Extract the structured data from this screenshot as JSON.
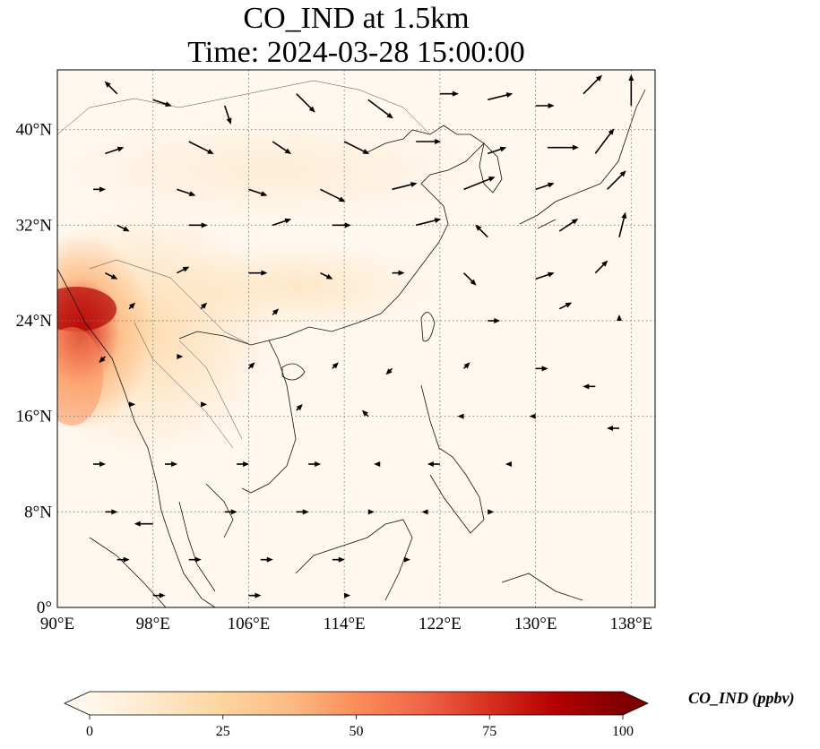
{
  "title": {
    "line1": "CO_IND at 1.5km",
    "line2": "Time: 2024-03-28 15:00:00"
  },
  "map": {
    "projection": "PlateCarree",
    "lon_range": [
      90,
      140
    ],
    "lat_range": [
      0,
      45
    ],
    "xticks": [
      {
        "value": 90,
        "label": "90°E"
      },
      {
        "value": 98,
        "label": "98°E"
      },
      {
        "value": 106,
        "label": "106°E"
      },
      {
        "value": 114,
        "label": "114°E"
      },
      {
        "value": 122,
        "label": "122°E"
      },
      {
        "value": 130,
        "label": "130°E"
      },
      {
        "value": 138,
        "label": "138°E"
      }
    ],
    "yticks": [
      {
        "value": 0,
        "label": "0°"
      },
      {
        "value": 8,
        "label": "8°N"
      },
      {
        "value": 16,
        "label": "16°N"
      },
      {
        "value": 24,
        "label": "24°N"
      },
      {
        "value": 32,
        "label": "32°N"
      },
      {
        "value": 40,
        "label": "40°N"
      }
    ],
    "gridlines": true,
    "features": [
      "coastlines",
      "country-borders",
      "wind-vectors",
      "filled-concentration"
    ]
  },
  "colorbar": {
    "label": "CO_IND (ppbv)",
    "cmap": "OrRd",
    "range": [
      0,
      100
    ],
    "extend": "both",
    "ticks": [
      {
        "value": 0,
        "label": "0"
      },
      {
        "value": 25,
        "label": "25"
      },
      {
        "value": 50,
        "label": "50"
      },
      {
        "value": 75,
        "label": "75"
      },
      {
        "value": 100,
        "label": "100"
      }
    ],
    "colors": [
      "#fff7ec",
      "#fee8c8",
      "#fdd49e",
      "#fdbb84",
      "#fc8d59",
      "#ef6548",
      "#d7301f",
      "#b30000",
      "#7f0000"
    ]
  },
  "colors": {
    "arrow": "#000000",
    "coast": "#111111",
    "grid": "#777777",
    "ocean_fill": "#fff8ef"
  },
  "wind_vectors": [
    {
      "lon": 95,
      "lat": 43,
      "u": -2,
      "v": 2
    },
    {
      "lon": 98,
      "lat": 42.5,
      "u": 3,
      "v": -1
    },
    {
      "lon": 104,
      "lat": 42,
      "u": 1,
      "v": -3
    },
    {
      "lon": 110,
      "lat": 43,
      "u": 3,
      "v": -3
    },
    {
      "lon": 116,
      "lat": 42.5,
      "u": 4,
      "v": -3
    },
    {
      "lon": 122,
      "lat": 43,
      "u": 3,
      "v": 0
    },
    {
      "lon": 126,
      "lat": 42.5,
      "u": 4,
      "v": 1
    },
    {
      "lon": 130,
      "lat": 42,
      "u": 3,
      "v": 0
    },
    {
      "lon": 134,
      "lat": 43,
      "u": 3,
      "v": 3
    },
    {
      "lon": 138,
      "lat": 42,
      "u": 0,
      "v": 5
    },
    {
      "lon": 94,
      "lat": 38,
      "u": 3,
      "v": 1
    },
    {
      "lon": 101,
      "lat": 39,
      "u": 4,
      "v": -2
    },
    {
      "lon": 108,
      "lat": 39,
      "u": 3,
      "v": -2
    },
    {
      "lon": 114,
      "lat": 39,
      "u": 4,
      "v": -2
    },
    {
      "lon": 120,
      "lat": 39,
      "u": 4,
      "v": 0
    },
    {
      "lon": 126,
      "lat": 38,
      "u": 3,
      "v": 1
    },
    {
      "lon": 131,
      "lat": 38.5,
      "u": 5,
      "v": 0
    },
    {
      "lon": 135,
      "lat": 38,
      "u": 3,
      "v": 4
    },
    {
      "lon": 93,
      "lat": 35,
      "u": 2,
      "v": 0
    },
    {
      "lon": 100,
      "lat": 35,
      "u": 3,
      "v": -1
    },
    {
      "lon": 106,
      "lat": 35,
      "u": 3,
      "v": -1
    },
    {
      "lon": 112,
      "lat": 35,
      "u": 4,
      "v": -2
    },
    {
      "lon": 118,
      "lat": 35,
      "u": 4,
      "v": 1
    },
    {
      "lon": 124,
      "lat": 35,
      "u": 5,
      "v": 2
    },
    {
      "lon": 130,
      "lat": 35,
      "u": 3,
      "v": 1
    },
    {
      "lon": 136,
      "lat": 35,
      "u": 3,
      "v": 3
    },
    {
      "lon": 95,
      "lat": 32,
      "u": 2,
      "v": -1
    },
    {
      "lon": 101,
      "lat": 32,
      "u": 3,
      "v": 0
    },
    {
      "lon": 108,
      "lat": 32,
      "u": 3,
      "v": 1
    },
    {
      "lon": 113,
      "lat": 32,
      "u": 3,
      "v": 0
    },
    {
      "lon": 120,
      "lat": 32,
      "u": 4,
      "v": 1
    },
    {
      "lon": 126,
      "lat": 31,
      "u": -2,
      "v": 2
    },
    {
      "lon": 132,
      "lat": 31.5,
      "u": 3,
      "v": 2
    },
    {
      "lon": 137,
      "lat": 31,
      "u": 1,
      "v": 4
    },
    {
      "lon": 94,
      "lat": 28,
      "u": 2,
      "v": -1
    },
    {
      "lon": 100,
      "lat": 28,
      "u": 2,
      "v": 1
    },
    {
      "lon": 106,
      "lat": 28,
      "u": 3,
      "v": 0
    },
    {
      "lon": 112,
      "lat": 28,
      "u": 2,
      "v": -1
    },
    {
      "lon": 118,
      "lat": 28,
      "u": 2,
      "v": 0
    },
    {
      "lon": 124,
      "lat": 28,
      "u": 2,
      "v": -2
    },
    {
      "lon": 130,
      "lat": 27.5,
      "u": 3,
      "v": 1
    },
    {
      "lon": 135,
      "lat": 28,
      "u": 2,
      "v": 2
    },
    {
      "lon": 96,
      "lat": 25,
      "u": 1,
      "v": 1
    },
    {
      "lon": 102,
      "lat": 25,
      "u": 1,
      "v": 1
    },
    {
      "lon": 108,
      "lat": 24.5,
      "u": 1,
      "v": 1
    },
    {
      "lon": 126,
      "lat": 24,
      "u": 2,
      "v": 0
    },
    {
      "lon": 132,
      "lat": 25,
      "u": 2,
      "v": 1
    },
    {
      "lon": 137,
      "lat": 24,
      "u": 0,
      "v": 1
    },
    {
      "lon": 94,
      "lat": 21,
      "u": -1,
      "v": -1
    },
    {
      "lon": 100,
      "lat": 21,
      "u": 1,
      "v": 0
    },
    {
      "lon": 106,
      "lat": 20,
      "u": 1,
      "v": 1
    },
    {
      "lon": 113,
      "lat": 20,
      "u": 1,
      "v": 1
    },
    {
      "lon": 118,
      "lat": 20,
      "u": -1,
      "v": -1
    },
    {
      "lon": 124,
      "lat": 20,
      "u": 1,
      "v": 1
    },
    {
      "lon": 130,
      "lat": 20,
      "u": 2,
      "v": 0
    },
    {
      "lon": 135,
      "lat": 18.5,
      "u": -2,
      "v": 0
    },
    {
      "lon": 96,
      "lat": 17,
      "u": 1,
      "v": 0
    },
    {
      "lon": 102,
      "lat": 17,
      "u": 1,
      "v": 0
    },
    {
      "lon": 110,
      "lat": 16.5,
      "u": 1,
      "v": 1
    },
    {
      "lon": 116,
      "lat": 16,
      "u": -1,
      "v": 1
    },
    {
      "lon": 124,
      "lat": 16,
      "u": -1,
      "v": 0
    },
    {
      "lon": 130,
      "lat": 16,
      "u": -1,
      "v": 0
    },
    {
      "lon": 137,
      "lat": 15,
      "u": -2,
      "v": 0
    },
    {
      "lon": 93,
      "lat": 12,
      "u": 2,
      "v": 0
    },
    {
      "lon": 99,
      "lat": 12,
      "u": 2,
      "v": 0
    },
    {
      "lon": 105,
      "lat": 12,
      "u": 2,
      "v": 0
    },
    {
      "lon": 111,
      "lat": 12,
      "u": 2,
      "v": 0
    },
    {
      "lon": 117,
      "lat": 12,
      "u": -1,
      "v": 0
    },
    {
      "lon": 122,
      "lat": 12,
      "u": -2,
      "v": 0
    },
    {
      "lon": 128,
      "lat": 12,
      "u": -1,
      "v": 0
    },
    {
      "lon": 94,
      "lat": 8,
      "u": 2,
      "v": 0
    },
    {
      "lon": 98,
      "lat": 7,
      "u": -3,
      "v": 0
    },
    {
      "lon": 104,
      "lat": 8,
      "u": 2,
      "v": 0
    },
    {
      "lon": 110,
      "lat": 8,
      "u": 2,
      "v": 0
    },
    {
      "lon": 116,
      "lat": 8,
      "u": 1,
      "v": 0
    },
    {
      "lon": 121,
      "lat": 8,
      "u": -1,
      "v": 0
    },
    {
      "lon": 126,
      "lat": 8,
      "u": 1,
      "v": 0
    },
    {
      "lon": 95,
      "lat": 4,
      "u": 2,
      "v": 0
    },
    {
      "lon": 101,
      "lat": 4,
      "u": 2,
      "v": 0
    },
    {
      "lon": 107,
      "lat": 4,
      "u": 2,
      "v": 0
    },
    {
      "lon": 113,
      "lat": 4,
      "u": 2,
      "v": 0
    },
    {
      "lon": 119,
      "lat": 4,
      "u": 1,
      "v": 0
    },
    {
      "lon": 98,
      "lat": 1,
      "u": 2,
      "v": 0
    },
    {
      "lon": 106,
      "lat": 1,
      "u": 2,
      "v": 0
    },
    {
      "lon": 114,
      "lat": 1,
      "u": 1,
      "v": 0
    }
  ]
}
